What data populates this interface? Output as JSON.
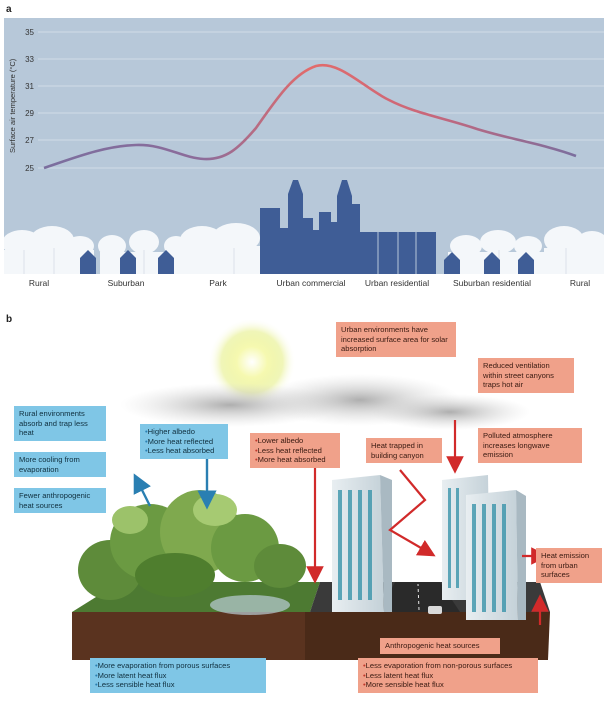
{
  "panel_a": {
    "label": "a",
    "ylabel": "Surface air temperature (°C)",
    "yticks": [
      "35",
      "33",
      "31",
      "29",
      "27",
      "25"
    ],
    "xlabels": [
      "Rural",
      "Suburban",
      "Park",
      "Urban commercial",
      "Urban residential",
      "Suburban residential",
      "Rural"
    ]
  },
  "panel_b": {
    "label": "b",
    "left_boxes": [
      "Rural environments absorb and trap less heat",
      "More cooling from evaporation",
      "Fewer anthropogenic heat sources"
    ],
    "green_box": [
      "Higher albedo",
      "More heat reflected",
      "Less heat absorbed"
    ],
    "red_box": [
      "Lower albedo",
      "Less heat reflected",
      "More heat absorbed"
    ],
    "surface_area": "Urban environments have increased surface area for solar absorption",
    "ventilation": "Reduced ventilation within street canyons traps hot air",
    "canyon": "Heat trapped in building canyon",
    "polluted": "Polluted atmosphere increases longwave emission",
    "emission": "Heat emission from urban surfaces",
    "anthropogenic": "Anthropogenic heat sources",
    "bottom_left": [
      "More evaporation from porous surfaces",
      "More latent heat flux",
      "Less sensible heat flux"
    ],
    "bottom_right": [
      "Less evaporation from non-porous surfaces",
      "Less latent heat flux",
      "More sensible heat flux"
    ]
  },
  "colors": {
    "rural_blue": "#7fc6e6",
    "urban_salmon": "#f0a18a",
    "building_blue": "#3f5d96",
    "curve_red": "#e06a6a",
    "curve_purple": "#7b6e9e"
  }
}
